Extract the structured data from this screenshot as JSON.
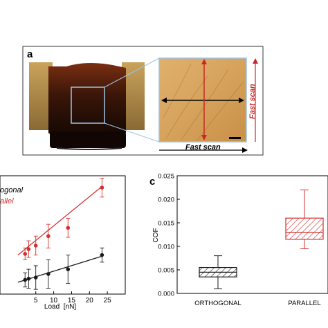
{
  "panels": {
    "a": {
      "letter": "a",
      "fast_scan_h": "Fast scan",
      "fast_scan_v": "Fast scan"
    },
    "b": {
      "legend_orthogonal": "ogonal",
      "legend_parallel": "allel"
    },
    "c": {
      "letter": "c"
    }
  },
  "colors": {
    "orthogonal": "#1a1a1a",
    "parallel": "#d32f2f",
    "frame": "#555555"
  },
  "chart_data": [
    {
      "panel": "b",
      "type": "scatter",
      "xlabel": "Load  [nN]",
      "ylabel": "",
      "xlim": [
        0,
        30
      ],
      "ylim": [
        0,
        1
      ],
      "x_ticks": [
        5,
        10,
        15,
        20,
        25
      ],
      "series": [
        {
          "name": "Orthogonal",
          "color": "#1a1a1a",
          "x": [
            2,
            3,
            5,
            8.5,
            14,
            23.5
          ],
          "y": [
            0.12,
            0.13,
            0.14,
            0.17,
            0.21,
            0.33
          ],
          "err": [
            0.06,
            0.08,
            0.1,
            0.12,
            0.12,
            0.06
          ],
          "fit": [
            [
              0,
              0.1
            ],
            [
              23.5,
              0.32
            ]
          ]
        },
        {
          "name": "Parallel",
          "color": "#d32f2f",
          "x": [
            2,
            3,
            5,
            8.5,
            14,
            23.5
          ],
          "y": [
            0.34,
            0.38,
            0.41,
            0.49,
            0.56,
            0.9
          ],
          "err": [
            0.05,
            0.07,
            0.08,
            0.1,
            0.08,
            0.08
          ],
          "fit": [
            [
              0,
              0.33
            ],
            [
              23.5,
              0.91
            ]
          ]
        }
      ]
    },
    {
      "panel": "c",
      "type": "box",
      "ylabel": "COF",
      "ylim": [
        0,
        0.025
      ],
      "y_ticks": [
        "0.000",
        "0.005",
        "0.010",
        "0.015",
        "0.020",
        "0.025"
      ],
      "categories": [
        "ORTHOGONAL",
        "PARALLEL"
      ],
      "boxes": [
        {
          "category": "ORTHOGONAL",
          "color": "#1a1a1a",
          "whisker_low": 0.001,
          "q1": 0.0035,
          "median": 0.0045,
          "q3": 0.0055,
          "whisker_high": 0.008
        },
        {
          "category": "PARALLEL",
          "color": "#d32f2f",
          "whisker_low": 0.0095,
          "q1": 0.0115,
          "median": 0.013,
          "q3": 0.016,
          "whisker_high": 0.022
        }
      ]
    }
  ]
}
